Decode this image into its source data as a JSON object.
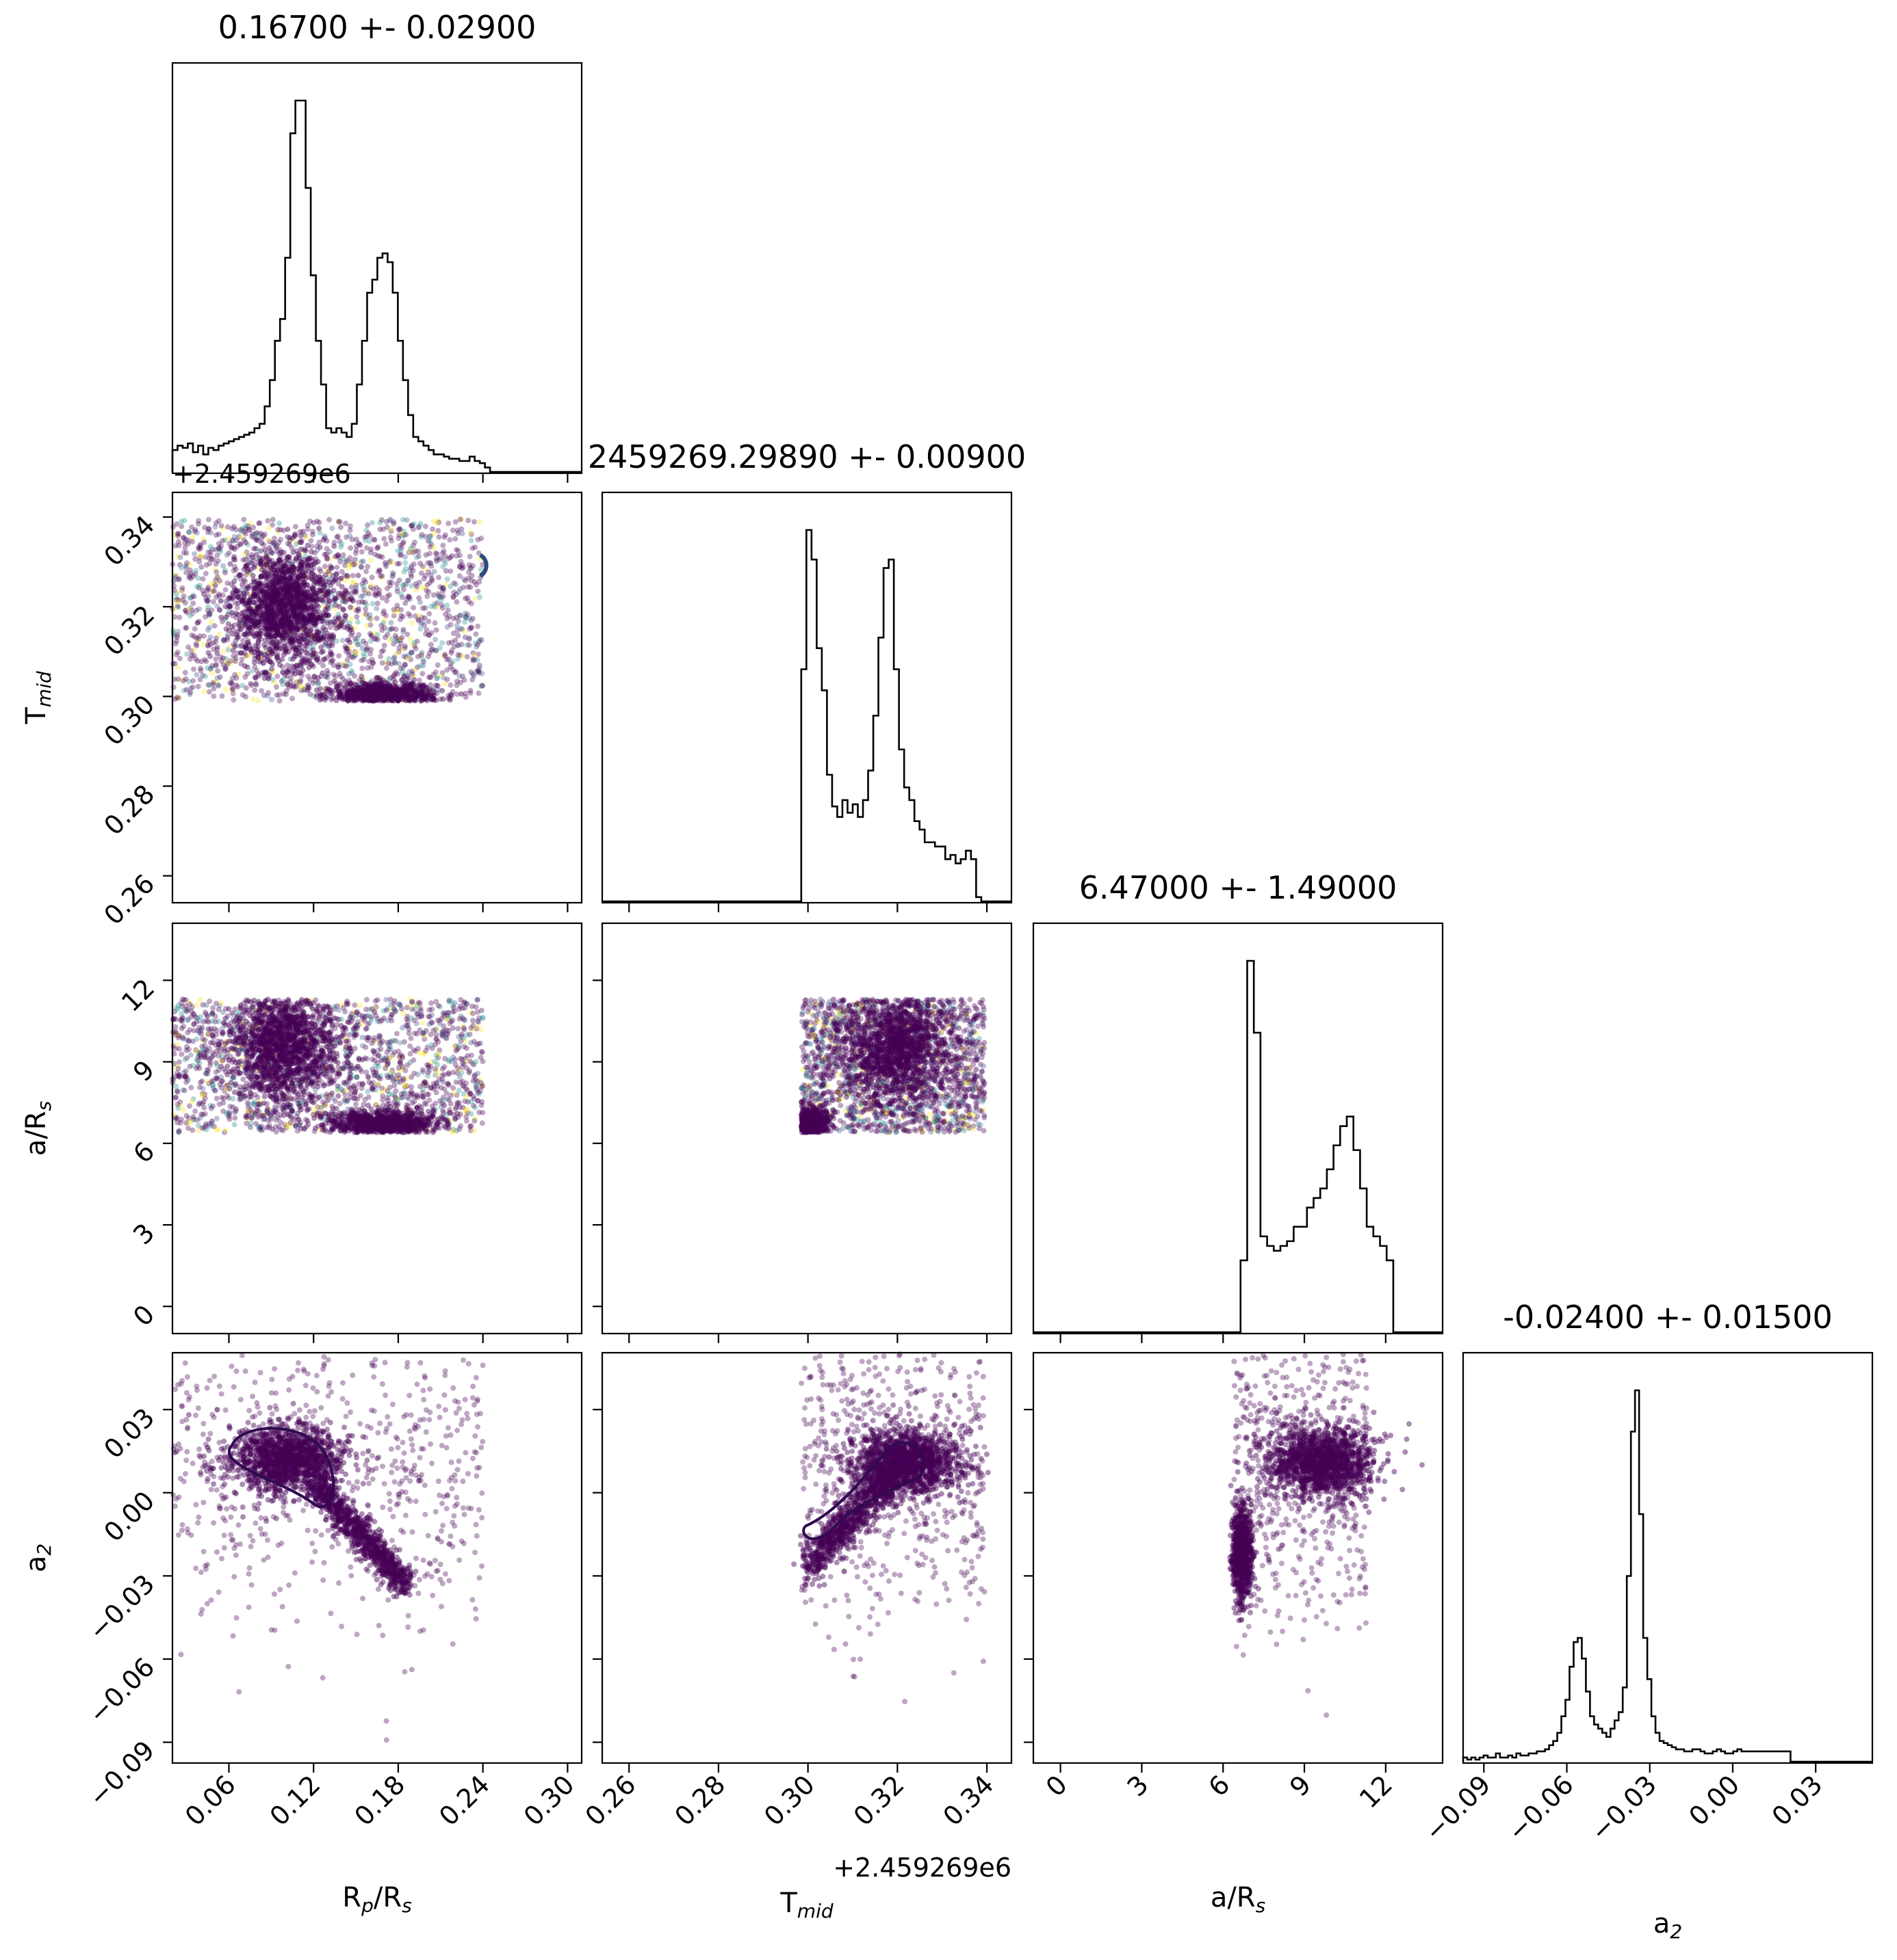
{
  "figure": {
    "type": "corner-plot",
    "offset_label": "+2.459269e6"
  },
  "chart_data": {
    "type": "corner",
    "parameters": [
      {
        "key": "rp",
        "label_main": "R",
        "label_sub": "p",
        "label_tail": "/R",
        "label_sub2": "s",
        "title": "0.16700 +- 0.02900",
        "range": [
          0.02,
          0.31
        ],
        "ticks": [
          0.06,
          0.12,
          0.18,
          0.24,
          0.3
        ],
        "tick_labels": [
          "0.06",
          "0.12",
          "0.18",
          "0.24",
          "0.30"
        ],
        "hist": {
          "edges_start": 0.02,
          "edges_step": 0.00363,
          "counts": [
            10,
            12,
            11,
            13,
            9,
            12,
            8,
            11,
            10,
            12,
            13,
            14,
            15,
            16,
            17,
            18,
            20,
            22,
            30,
            42,
            60,
            70,
            98,
            155,
            170,
            170,
            130,
            90,
            60,
            40,
            20,
            18,
            20,
            18,
            16,
            22,
            40,
            60,
            82,
            88,
            98,
            100,
            96,
            82,
            60,
            42,
            26,
            16,
            14,
            12,
            10,
            8,
            8,
            7,
            6,
            6,
            5,
            5,
            7,
            5,
            4,
            2,
            0,
            0,
            0,
            0,
            0,
            0,
            0,
            0,
            0,
            0,
            0,
            0,
            0,
            0,
            0,
            0,
            0,
            0
          ]
        }
      },
      {
        "key": "tmid",
        "label_main": "T",
        "label_sub": "mid",
        "title": "2459269.29890 +- 0.00900",
        "offset_note": "+2.459269e6",
        "range": [
          0.254,
          0.3455
        ],
        "ticks": [
          0.26,
          0.28,
          0.3,
          0.32,
          0.34
        ],
        "tick_labels": [
          "0.26",
          "0.28",
          "0.30",
          "0.32",
          "0.34"
        ],
        "hist": {
          "edges_start": 0.2985,
          "edges_step": 0.00115,
          "counts": [
            110,
            176,
            162,
            120,
            100,
            60,
            45,
            40,
            48,
            42,
            46,
            40,
            48,
            62,
            88,
            125,
            158,
            162,
            110,
            72,
            54,
            48,
            38,
            34,
            28,
            28,
            26,
            26,
            20,
            22,
            18,
            20,
            24,
            20,
            2,
            0
          ]
        }
      },
      {
        "key": "ars",
        "label_main": "a/R",
        "label_sub": "s",
        "title": "6.47000 +- 1.49000",
        "range": [
          -1,
          14.1
        ],
        "ticks": [
          0,
          3,
          6,
          9,
          12
        ],
        "tick_labels": [
          "0",
          "3",
          "6",
          "9",
          "12"
        ],
        "hist": {
          "edges_start": 6.4,
          "edges_step": 0.245,
          "counts": [
            0,
            30,
            155,
            125,
            40,
            36,
            34,
            36,
            38,
            44,
            44,
            52,
            56,
            60,
            68,
            78,
            86,
            90,
            76,
            60,
            44,
            40,
            36,
            30,
            0
          ]
        }
      },
      {
        "key": "a2",
        "label_main": "a",
        "label_sub": "2",
        "title": "-0.02400 +- 0.01500",
        "range": [
          -0.0975,
          0.0505
        ],
        "ticks": [
          -0.09,
          -0.06,
          -0.03,
          0.0,
          0.03
        ],
        "tick_labels": [
          "−0.09",
          "−0.06",
          "−0.03",
          "0.00",
          "0.03"
        ],
        "hist": {
          "edges_start": -0.0975,
          "edges_step": 0.00148,
          "counts": [
            2,
            1,
            2,
            1,
            2,
            3,
            2,
            2,
            4,
            2,
            2,
            3,
            2,
            4,
            3,
            3,
            4,
            4,
            5,
            5,
            6,
            8,
            10,
            14,
            22,
            30,
            46,
            58,
            60,
            50,
            34,
            22,
            18,
            16,
            14,
            12,
            16,
            20,
            24,
            36,
            90,
            160,
            180,
            120,
            60,
            40,
            22,
            14,
            10,
            9,
            8,
            7,
            6,
            6,
            5,
            5,
            6,
            6,
            5,
            4,
            4,
            5,
            6,
            5,
            4,
            4,
            5,
            6,
            5,
            5,
            5,
            5,
            5,
            5,
            5,
            5,
            5,
            5,
            5,
            5
          ]
        }
      }
    ],
    "axis_labels": {
      "y_rows": [
        "T_mid",
        "a/R_s",
        "a_2"
      ],
      "x_cols": [
        "R_p/R_s",
        "T_mid",
        "a/R_s",
        "a_2"
      ]
    },
    "scatter_clusters": [
      {
        "panel": "rp-tmid",
        "center": [
          0.1,
          0.32
        ],
        "spread": [
          0.018,
          0.006
        ],
        "weight": 0.45
      },
      {
        "panel": "rp-tmid",
        "center": [
          0.17,
          0.3
        ],
        "spread": [
          0.018,
          0.0015
        ],
        "weight": 0.3
      },
      {
        "panel": "rp-ars",
        "center": [
          0.1,
          9.6
        ],
        "spread": [
          0.018,
          1.0
        ],
        "weight": 0.45
      },
      {
        "panel": "rp-ars",
        "center": [
          0.17,
          6.7
        ],
        "spread": [
          0.018,
          0.25
        ],
        "weight": 0.3
      },
      {
        "panel": "tmid-ars",
        "center": [
          0.32,
          9.6
        ],
        "spread": [
          0.006,
          1.0
        ],
        "weight": 0.45
      },
      {
        "panel": "tmid-ars",
        "center": [
          0.3,
          6.7
        ],
        "spread": [
          0.002,
          0.3
        ],
        "weight": 0.3
      },
      {
        "panel": "rp-a2",
        "center": [
          0.1,
          0.012
        ],
        "spread": [
          0.02,
          0.006
        ],
        "weight": 0.45
      },
      {
        "panel": "tmid-a2",
        "center": [
          0.322,
          0.011
        ],
        "spread": [
          0.006,
          0.006
        ],
        "weight": 0.45
      },
      {
        "panel": "ars-a2",
        "center": [
          9.6,
          0.011
        ],
        "spread": [
          1.0,
          0.006
        ],
        "weight": 0.45
      }
    ],
    "colors": {
      "points": "#440154",
      "points_alt": [
        "#fde725",
        "#21918c",
        "#3b528b"
      ],
      "line": "#000000",
      "contour": "#2f0a4f"
    }
  }
}
